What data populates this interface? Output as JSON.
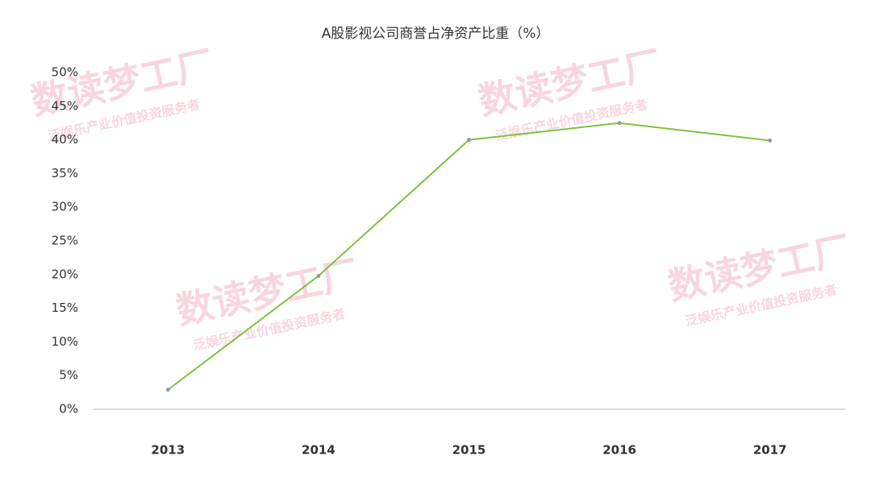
{
  "chart_data": {
    "type": "line",
    "title": "A股影视公司商誉占净资产比重（%）",
    "watermark": "数读梦工厂",
    "watermark_subtitle": "泛娱乐产业价值投资服务者",
    "categories": [
      "2013",
      "2014",
      "2015",
      "2016",
      "2017"
    ],
    "series": [
      {
        "name": "商誉占净资产比重",
        "color": "#7dc242",
        "values": [
          2.9,
          19.8,
          40.0,
          42.5,
          39.9
        ]
      }
    ],
    "ylim": [
      0,
      50
    ],
    "yticks": [
      {
        "value": 0,
        "label": "0%"
      },
      {
        "value": 5,
        "label": "5%"
      },
      {
        "value": 10,
        "label": "10%"
      },
      {
        "value": 15,
        "label": "15%"
      },
      {
        "value": 20,
        "label": "20%"
      },
      {
        "value": 25,
        "label": "25%"
      },
      {
        "value": 30,
        "label": "30%"
      },
      {
        "value": 35,
        "label": "35%"
      },
      {
        "value": 40,
        "label": "40%"
      },
      {
        "value": 45,
        "label": "45%"
      },
      {
        "value": 50,
        "label": "50%"
      }
    ],
    "grid": false,
    "marker_color": "#999999"
  }
}
